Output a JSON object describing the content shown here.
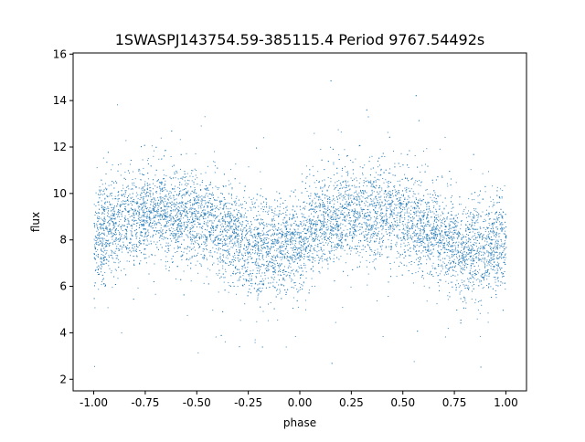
{
  "chart_data": {
    "type": "scatter",
    "title": "1SWASPJ143754.59-385115.4 Period 9767.54492s",
    "xlabel": "phase",
    "ylabel": "flux",
    "xlim": [
      -1.1,
      1.1
    ],
    "ylim": [
      1.5,
      16.05
    ],
    "xticks": [
      "-1.00",
      "-0.75",
      "-0.50",
      "-0.25",
      "0.00",
      "0.25",
      "0.50",
      "0.75",
      "1.00"
    ],
    "yticks": [
      "2",
      "4",
      "6",
      "8",
      "10",
      "12",
      "14",
      "16"
    ],
    "grid": false,
    "marker_color": "#1f77b4",
    "point_count_approx": 9000,
    "phase_profile": {
      "phase": [
        -1,
        -0.875,
        -0.75,
        -0.625,
        -0.5,
        -0.375,
        -0.25,
        -0.125,
        0,
        0.125,
        0.25,
        0.375,
        0.5,
        0.625,
        0.75,
        0.875,
        1
      ],
      "mean_flux": [
        8.0,
        8.8,
        9.2,
        9.2,
        9.0,
        8.5,
        7.7,
        7.5,
        8.0,
        8.8,
        9.2,
        9.2,
        9.0,
        8.4,
        7.7,
        7.5,
        8.0
      ],
      "flux_scatter_std": 1.0
    }
  }
}
